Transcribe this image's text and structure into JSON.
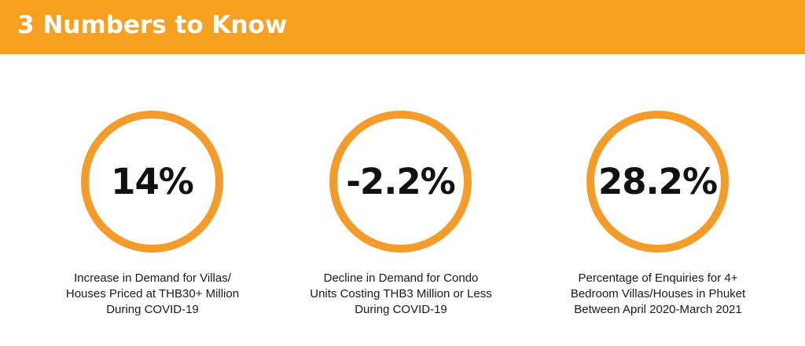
{
  "header": {
    "title": "3 Numbers to Know"
  },
  "colors": {
    "banner": "#f7a022",
    "ring": "#f39b2b",
    "title_text": "#ffffff",
    "value_text": "#111111"
  },
  "stats": [
    {
      "value": "14%",
      "caption_lines": [
        "Increase in Demand for Villas/",
        "Houses Priced at THB30+ Million",
        "During COVID-19"
      ]
    },
    {
      "value": "-2.2%",
      "caption_lines": [
        "Decline in Demand for Condo",
        "Units Costing THB3 Million or Less",
        "During COVID-19"
      ]
    },
    {
      "value": "28.2%",
      "caption_lines": [
        "Percentage of Enquiries for 4+",
        "Bedroom Villas/Houses in Phuket",
        "Between April 2020-March 2021"
      ]
    }
  ]
}
